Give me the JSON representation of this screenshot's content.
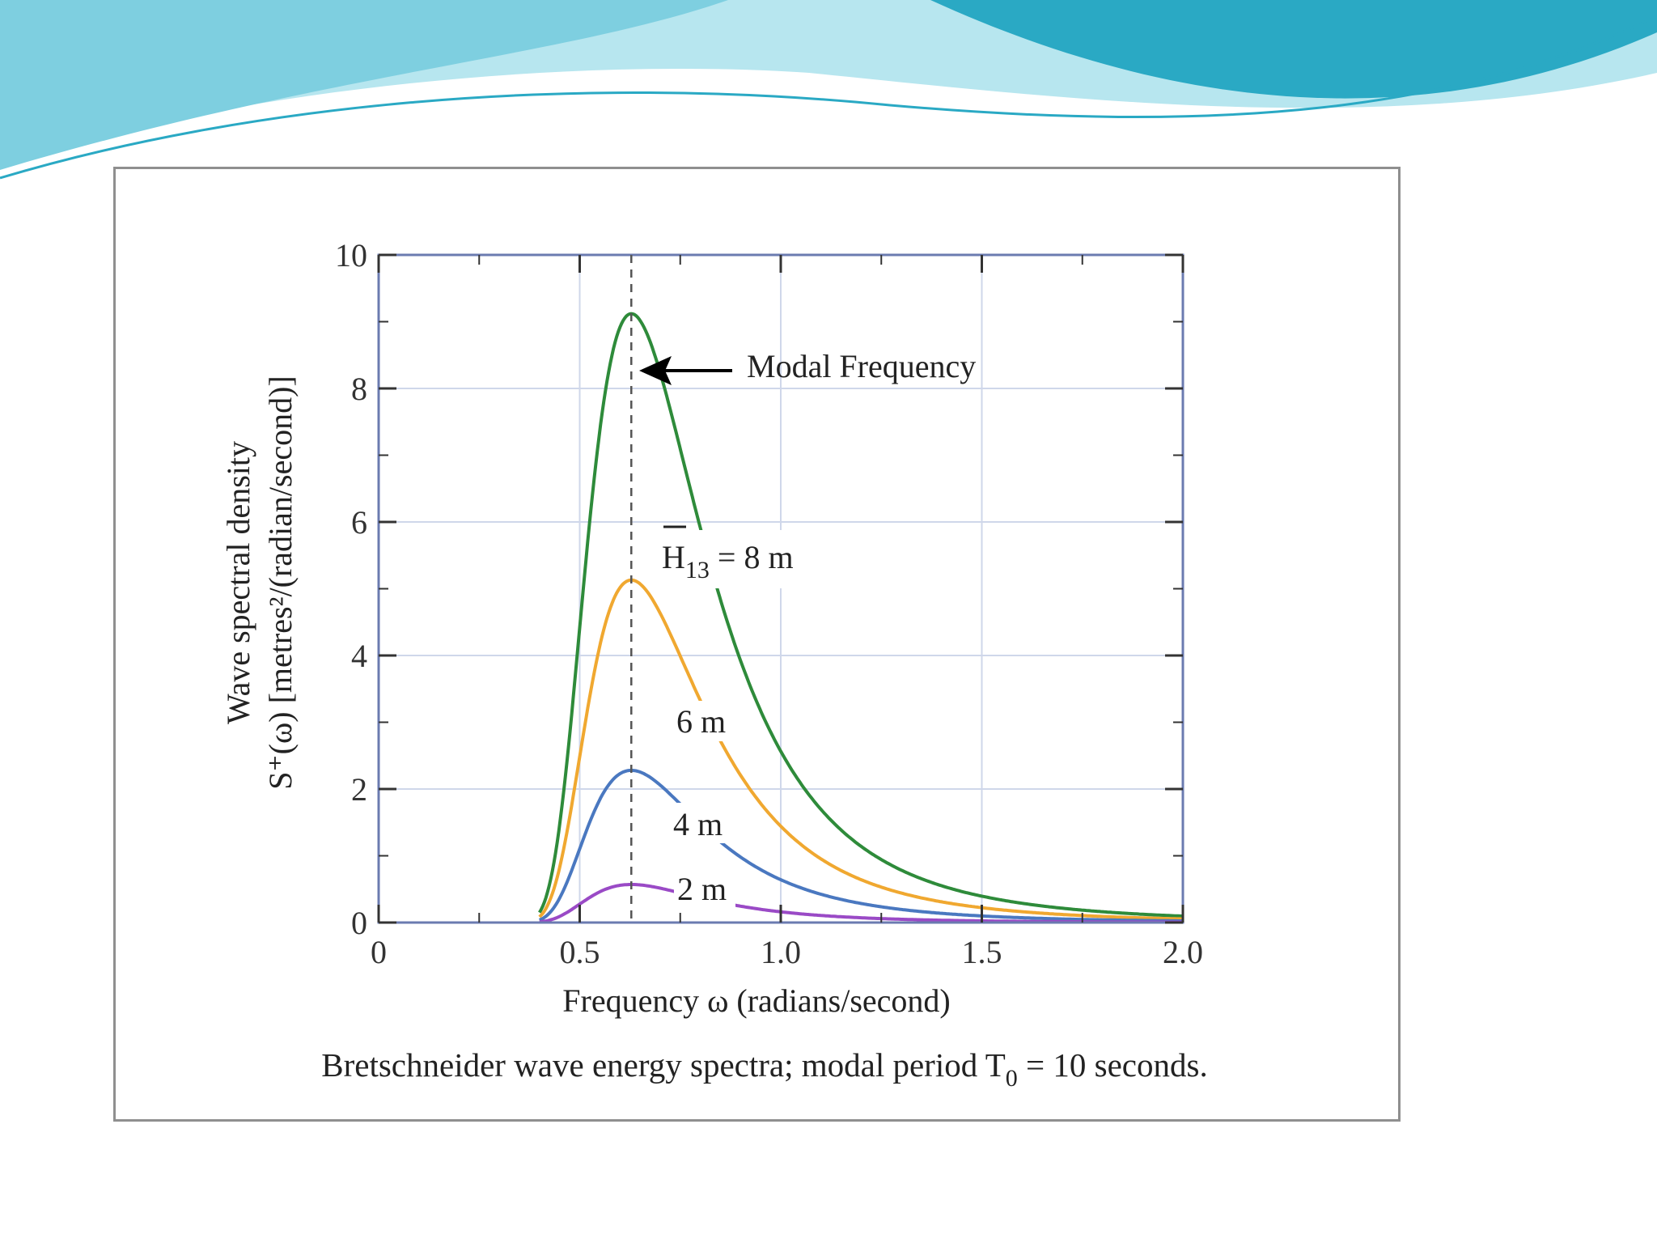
{
  "slide": {
    "colors": {
      "wave_light": "#b7e6ef",
      "wave_mid": "#7ecfe0",
      "wave_dark": "#2aa9c4",
      "frame": "#8f8f8f"
    }
  },
  "chart_data": {
    "type": "line",
    "title": "",
    "xlabel": "Frequency ω (radians/second)",
    "ylabel_line1": "Wave spectral density",
    "ylabel_line2": "S⁺(ω) [metres²/(radian/second)]",
    "xlim": [
      0,
      2.0
    ],
    "ylim": [
      0,
      10
    ],
    "x_ticks": [
      0,
      0.5,
      1.0,
      1.5,
      2.0
    ],
    "x_tick_labels": [
      "0",
      "0.5",
      "1.0",
      "1.5",
      "2.0"
    ],
    "y_ticks": [
      0,
      2,
      4,
      6,
      8,
      10
    ],
    "y_tick_labels": [
      "0",
      "2",
      "4",
      "6",
      "8",
      "10"
    ],
    "grid": true,
    "modal_period_s": 10,
    "series": [
      {
        "name": "H13 = 8 m",
        "H13_m": 8,
        "color": "#2e8b3a"
      },
      {
        "name": "6 m",
        "H13_m": 6,
        "color": "#f0a830"
      },
      {
        "name": "4 m",
        "H13_m": 4,
        "color": "#4a78c0"
      },
      {
        "name": "2 m",
        "H13_m": 2,
        "color": "#9a4ac6"
      }
    ],
    "annotations": {
      "modal_frequency": "Modal Frequency",
      "h13_symbol": "H",
      "h13_sub": "13",
      "h13_value": " = 8 m",
      "label_6m": "6 m",
      "label_4m": "4 m",
      "label_2m": "2 m"
    },
    "caption": {
      "prefix": "Bretschneider wave energy spectra; modal period T",
      "sub": "0",
      "suffix": " = 10 seconds."
    }
  }
}
